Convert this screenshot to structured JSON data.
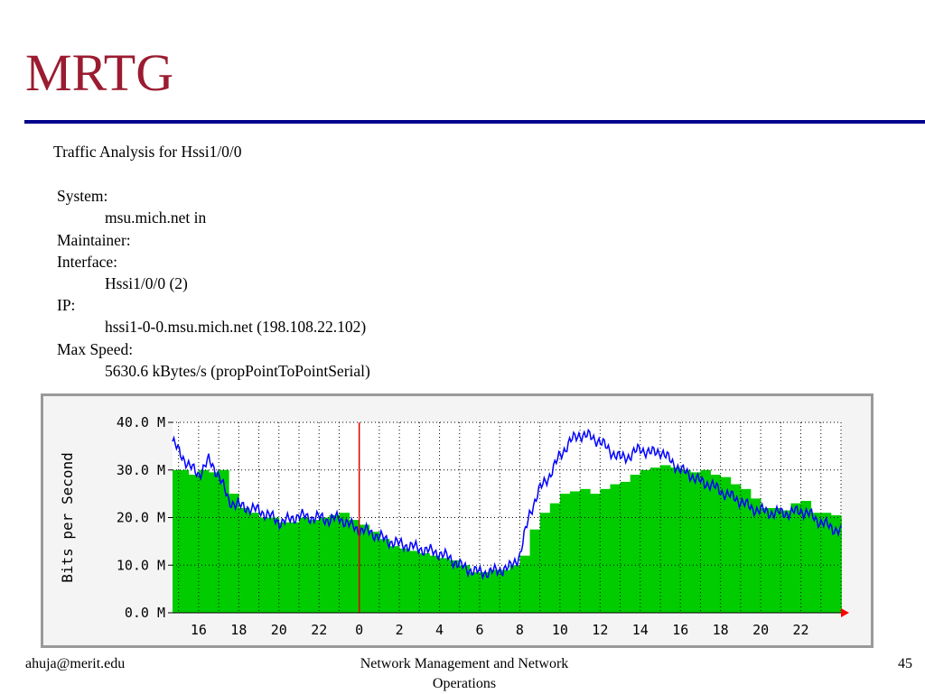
{
  "slide": {
    "title": "MRTG",
    "info": {
      "heading": "Traffic Analysis for Hssi1/0/0",
      "system_label": "System:",
      "system_value": "msu.mich.net in",
      "maintainer_label": "Maintainer:",
      "interface_label": "Interface:",
      "interface_value": "Hssi1/0/0 (2)",
      "ip_label": "IP:",
      "ip_value": "hssi1-0-0.msu.mich.net (198.108.22.102)",
      "maxspeed_label": "Max Speed:",
      "maxspeed_value": "5630.6 kBytes/s (propPointToPointSerial)"
    },
    "footer": {
      "left": "ahuja@merit.edu",
      "center_line1": "Network Management and Network",
      "center_line2": "Operations",
      "page": "45"
    }
  },
  "colors": {
    "title": "#9b1b30",
    "rule": "#00008b",
    "incoming_fill": "#00cc00",
    "outgoing_line": "#0000ff",
    "midnight_marker": "#e00000",
    "arrow": "#ff0000"
  },
  "chart_data": {
    "type": "area",
    "ylabel": "Bits per Second",
    "ylim": [
      0,
      40
    ],
    "y_unit": "M",
    "y_ticks": [
      "0.0 M",
      "10.0 M",
      "20.0 M",
      "30.0 M",
      "40.0 M"
    ],
    "x_tick_labels": [
      "16",
      "18",
      "20",
      "22",
      "0",
      "2",
      "4",
      "6",
      "8",
      "10",
      "12",
      "14",
      "16",
      "18",
      "20",
      "22"
    ],
    "x_tick_hours": [
      16,
      18,
      20,
      22,
      24,
      26,
      28,
      30,
      32,
      34,
      36,
      38,
      40,
      42,
      44,
      46
    ],
    "x_range_hours": [
      14.7,
      48.0
    ],
    "midnight_marker_hour": 24,
    "grid": true,
    "series": [
      {
        "style": "filled-bars",
        "x": [
          14.7,
          15,
          15.5,
          16,
          16.5,
          17,
          17.5,
          18,
          18.5,
          19,
          19.5,
          20,
          20.5,
          21,
          21.5,
          22,
          22.5,
          23,
          23.5,
          24,
          24.5,
          25,
          25.5,
          26,
          26.5,
          27,
          27.5,
          28,
          28.5,
          29,
          29.5,
          30,
          30.5,
          31,
          31.5,
          32,
          32.5,
          33,
          33.5,
          34,
          34.5,
          35,
          35.5,
          36,
          36.5,
          37,
          37.5,
          38,
          38.5,
          39,
          39.5,
          40,
          40.5,
          41,
          41.5,
          42,
          42.5,
          43,
          43.5,
          44,
          44.5,
          45,
          45.5,
          46,
          46.5,
          47,
          47.5,
          48
        ],
        "values": [
          30,
          30,
          29,
          30,
          29.5,
          30,
          25,
          22,
          21,
          20,
          20,
          19,
          19,
          20,
          19.5,
          20,
          20.5,
          21,
          19.5,
          18.5,
          17,
          15.5,
          14,
          13.5,
          13,
          12.5,
          12,
          11.5,
          11,
          10,
          8.5,
          8.5,
          9,
          9,
          10,
          12,
          17.5,
          21,
          23,
          25,
          25.5,
          26,
          25,
          26,
          27,
          27.5,
          29,
          30,
          30.5,
          31,
          30.5,
          30,
          29.5,
          30,
          29,
          28.5,
          27,
          26,
          24,
          22,
          22,
          21.5,
          23,
          23.5,
          21,
          21,
          20.5,
          20
        ]
      },
      {
        "style": "line",
        "x": [
          14.7,
          15,
          15.5,
          16,
          16.5,
          17,
          17.5,
          18,
          18.5,
          19,
          19.5,
          20,
          20.5,
          21,
          21.5,
          22,
          22.5,
          23,
          23.5,
          24,
          24.5,
          25,
          25.5,
          26,
          26.5,
          27,
          27.5,
          28,
          28.5,
          29,
          29.5,
          30,
          30.5,
          31,
          31.5,
          32,
          32.5,
          33,
          33.5,
          34,
          34.5,
          35,
          35.5,
          36,
          36.5,
          37,
          37.5,
          38,
          38.5,
          39,
          39.5,
          40,
          40.5,
          41,
          41.5,
          42,
          42.5,
          43,
          43.5,
          44,
          44.5,
          45,
          45.5,
          46,
          46.5,
          47,
          47.5,
          48
        ],
        "values": [
          36,
          34,
          31,
          29,
          32,
          29,
          23.5,
          22.5,
          22,
          21.5,
          20.5,
          19,
          19.5,
          20.5,
          20,
          20,
          19.5,
          20,
          18.5,
          17.5,
          17,
          16,
          15,
          14.5,
          14,
          13.5,
          13,
          12.5,
          11.5,
          10,
          9,
          8.5,
          8.5,
          9,
          9.5,
          12,
          21,
          26,
          29,
          33,
          36,
          37.5,
          37,
          36,
          34,
          32.5,
          33,
          34.5,
          33.5,
          34,
          32,
          30,
          29,
          27.5,
          27,
          25.5,
          24.5,
          23.5,
          22,
          21.5,
          21,
          21,
          21,
          21.5,
          20.5,
          19,
          18,
          17
        ]
      }
    ]
  }
}
